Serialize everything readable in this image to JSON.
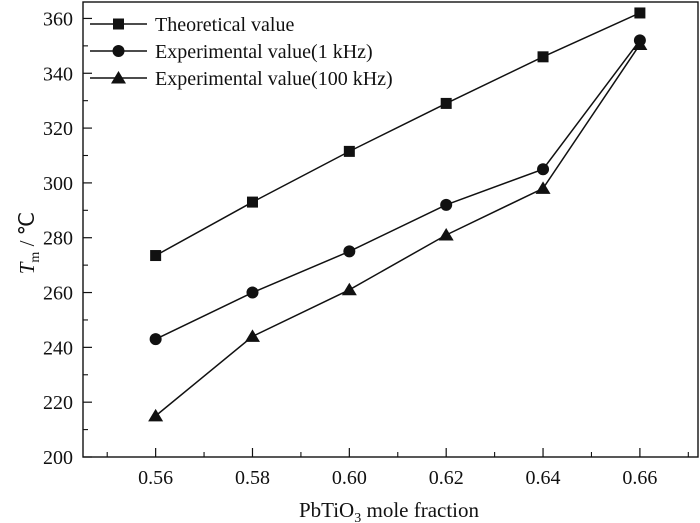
{
  "chart_data": {
    "type": "line",
    "title": "",
    "xlabel": {
      "main": "PbTiO",
      "subscript": "3",
      "rest": " mole fraction"
    },
    "ylabel": {
      "main": "T",
      "subscript": "m",
      "rest": " / ℃"
    },
    "x": [
      0.56,
      0.58,
      0.6,
      0.62,
      0.64,
      0.66
    ],
    "x_tick_labels": [
      "0.56",
      "0.58",
      "0.60",
      "0.62",
      "0.64",
      "0.66"
    ],
    "xlim": [
      0.545,
      0.672
    ],
    "ylim": [
      200,
      366
    ],
    "y_ticks": [
      200,
      220,
      240,
      260,
      280,
      300,
      320,
      340,
      360
    ],
    "y_tick_labels": [
      "200",
      "220",
      "240",
      "260",
      "280",
      "300",
      "320",
      "340",
      "360"
    ],
    "grid": false,
    "legend_position": "top-left",
    "series": [
      {
        "name": "Theoretical value",
        "marker": "square",
        "values": [
          273.5,
          293,
          311.5,
          329,
          346,
          362
        ]
      },
      {
        "name": "Experimental value(1 kHz)",
        "marker": "circle",
        "values": [
          243,
          260,
          275,
          292,
          305,
          352
        ]
      },
      {
        "name": "Experimental value(100 kHz)",
        "marker": "triangle",
        "values": [
          215,
          244,
          261,
          281,
          298,
          350.5
        ]
      }
    ],
    "colors": {
      "line": "#111111",
      "marker": "#111111",
      "axis": "#111111"
    }
  }
}
